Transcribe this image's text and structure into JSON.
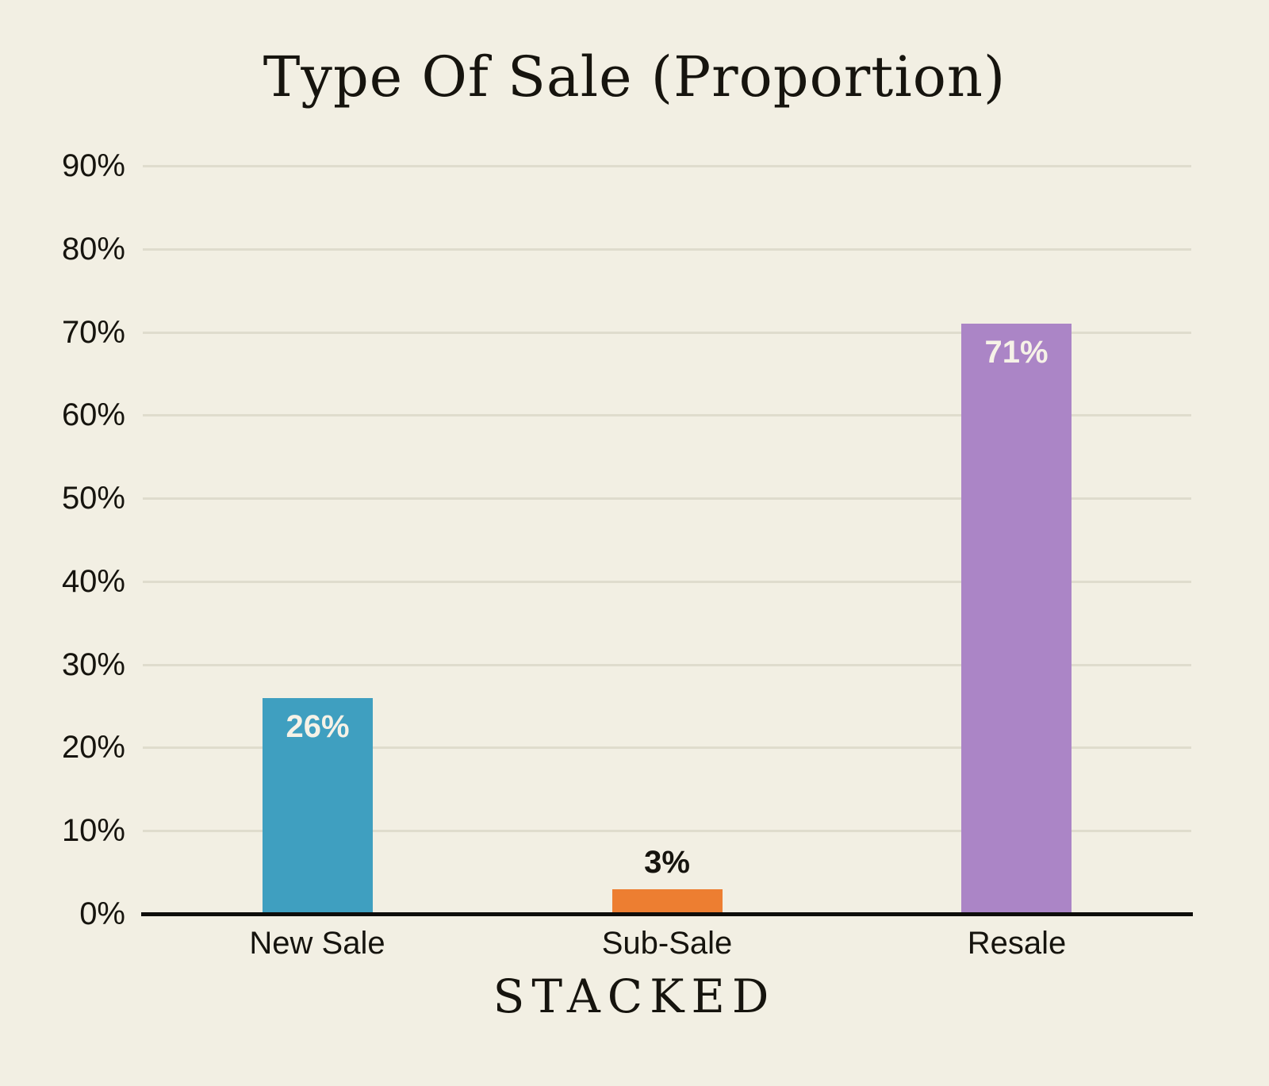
{
  "title": "Type Of Sale (Proportion)",
  "footer": {
    "brand": "STACKED"
  },
  "colors": {
    "background": "#f2efe3",
    "text": "#16140e",
    "axis": "#0e0d0a",
    "gridline": "#dfdccd",
    "value_label_light": "#f6f2e7",
    "value_label_dark": "#16140e",
    "bar_teal": "#3f9fc0",
    "bar_orange": "#ed7e31",
    "bar_purple": "#ab85c6"
  },
  "chart_data": {
    "type": "bar",
    "title": "Type Of Sale (Proportion)",
    "categories": [
      "New Sale",
      "Sub-Sale",
      "Resale"
    ],
    "values": [
      26,
      3,
      71
    ],
    "value_labels": [
      "26%",
      "3%",
      "71%"
    ],
    "value_label_placement": [
      "inside",
      "outside",
      "inside"
    ],
    "bar_colors": [
      "#3f9fc0",
      "#ed7e31",
      "#ab85c6"
    ],
    "unit": "%",
    "xlabel": "",
    "ylabel": "",
    "ylim": [
      0,
      90
    ],
    "ytick_step": 10,
    "ytick_labels": [
      "0%",
      "10%",
      "20%",
      "30%",
      "40%",
      "50%",
      "60%",
      "70%",
      "80%",
      "90%"
    ],
    "grid": true,
    "legend": false
  }
}
